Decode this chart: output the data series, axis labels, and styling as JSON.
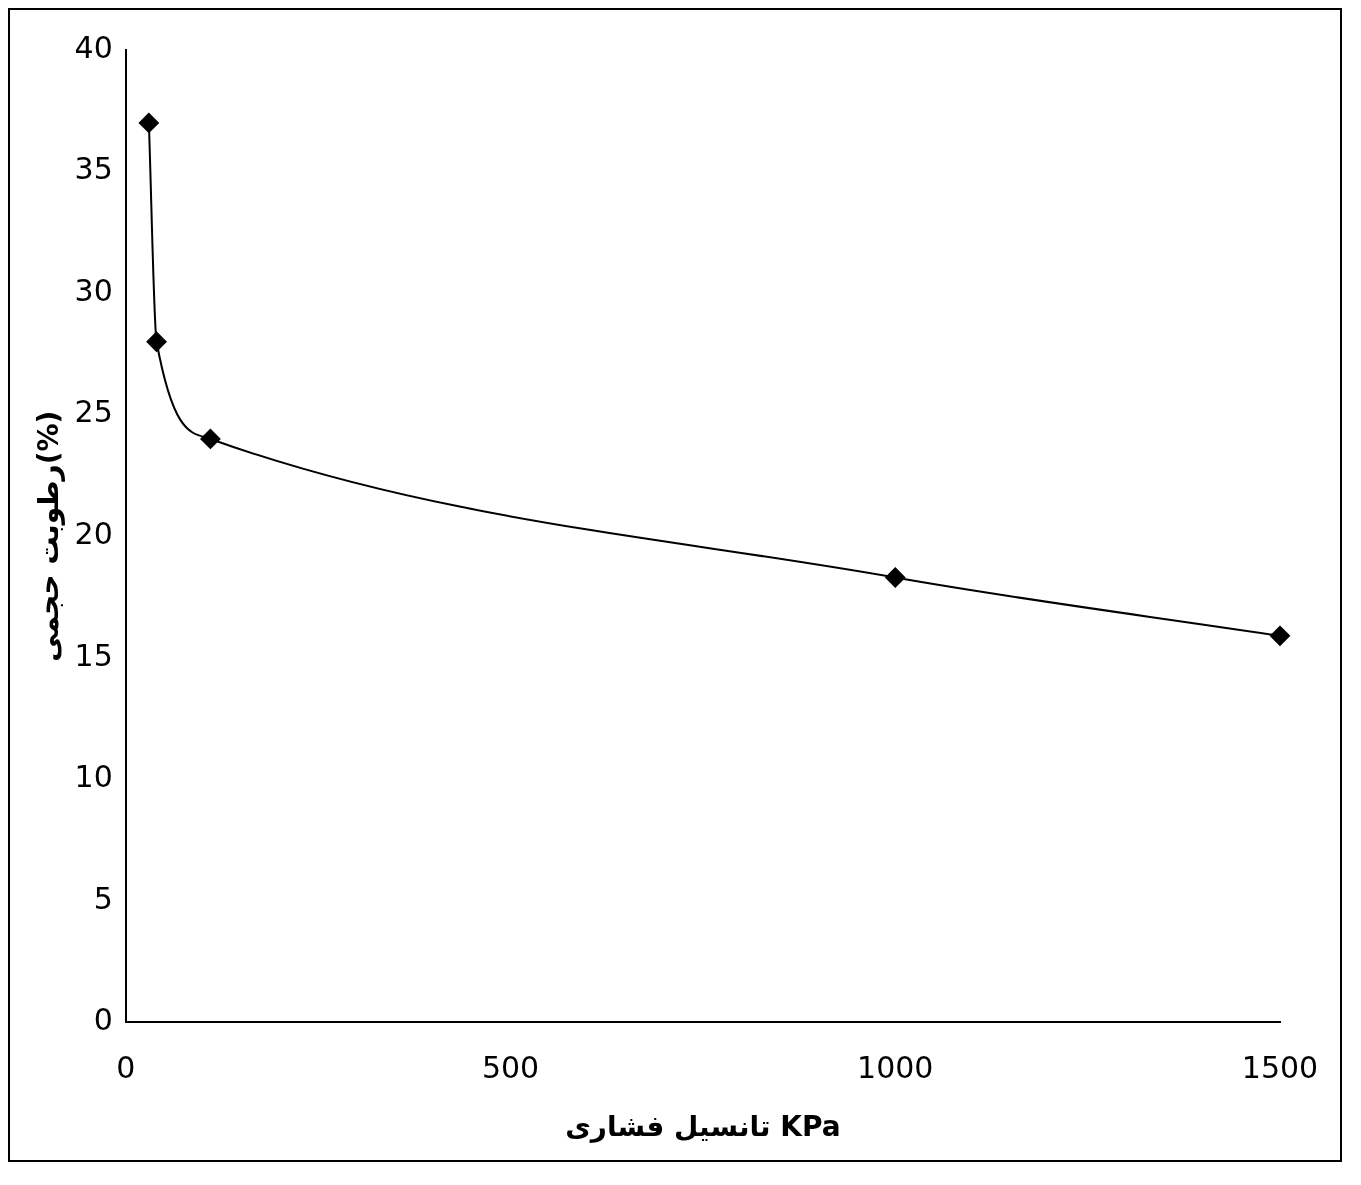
{
  "chart_data": {
    "type": "line",
    "xlabel": "تانسیل فشاری KPa",
    "ylabel": "رطوبت حجمی(%)",
    "x": [
      30,
      40,
      110,
      1000,
      1500
    ],
    "series": [
      {
        "color": "#000000",
        "values": [
          37,
          28,
          24,
          18.3,
          15.9
        ]
      }
    ],
    "xlim": [
      0,
      1500
    ],
    "xticks": [
      0,
      500,
      1000,
      1500
    ],
    "ylim": [
      0,
      40
    ],
    "yticks": [
      0,
      5,
      10,
      15,
      20,
      25,
      30,
      35,
      40
    ],
    "grid": false,
    "legend": false,
    "marker": "diamond",
    "line_style": "solid"
  }
}
